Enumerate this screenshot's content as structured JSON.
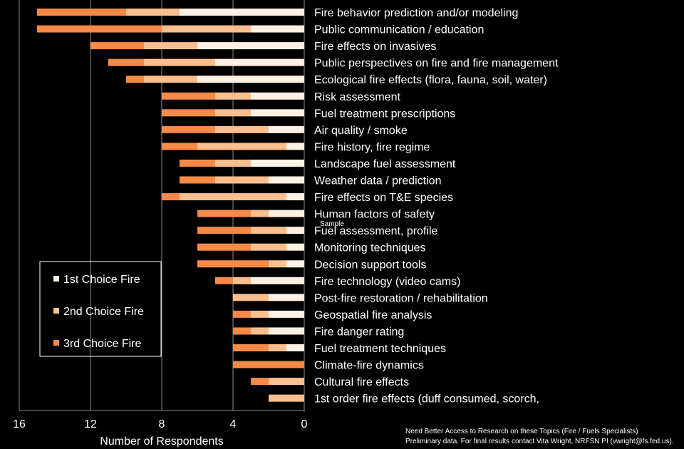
{
  "chart_data": {
    "type": "bar",
    "orientation": "horizontal",
    "stacked": true,
    "x_reversed": true,
    "categories": [
      "Fire behavior prediction and/or modeling",
      "Public communication / education",
      "Fire effects on invasives",
      "Public perspectives on fire and fire management",
      "Ecological fire effects (flora, fauna, soil, water)",
      "Risk assessment",
      "Fuel treatment prescriptions",
      "Air quality / smoke",
      "Fire history, fire regime",
      "Landscape fuel assessment",
      "Weather data / prediction",
      "Fire effects on T&E species",
      "Human factors of safety",
      "Fuel assessment, profile",
      "Monitoring techniques",
      "Decision support tools",
      "Fire technology (video cams)",
      "Post-fire restoration / rehabilitation",
      "Geospatial fire analysis",
      "Fire danger rating",
      "Fuel treatment techniques",
      "Climate-fire dynamics",
      "Cultural fire effects",
      "1st order fire effects (duff consumed, scorch,"
    ],
    "series": [
      {
        "name": "1st Choice Fire",
        "color": "#fff0e4",
        "values": [
          7,
          3,
          6,
          5,
          6,
          3,
          3,
          2,
          1,
          3,
          2,
          1,
          2,
          1,
          1,
          1,
          3,
          2,
          2,
          2,
          1,
          0,
          0,
          0
        ]
      },
      {
        "name": "2nd Choice Fire",
        "color": "#fbbf8f",
        "values": [
          3,
          5,
          3,
          4,
          3,
          2,
          2,
          3,
          5,
          2,
          3,
          6,
          1,
          2,
          2,
          1,
          1,
          2,
          1,
          1,
          1,
          0,
          2,
          2
        ]
      },
      {
        "name": "3rd Choice Fire",
        "color": "#f78a46",
        "values": [
          5,
          7,
          3,
          2,
          1,
          3,
          3,
          3,
          2,
          2,
          2,
          1,
          3,
          3,
          3,
          4,
          1,
          0,
          1,
          1,
          2,
          4,
          1,
          0
        ]
      }
    ],
    "xlim": [
      16,
      0
    ],
    "ticks": [
      16,
      12,
      8,
      4,
      0
    ],
    "xlabel": "Number of Respondents",
    "ylabel": "",
    "title": "",
    "grid": true,
    "legend_position": "lower-left",
    "watermark": "Sample"
  },
  "footnote": {
    "line1": "Need Better Access to Research on these Topics (Fire / Fuels Specialists)",
    "line2": "Preliminary data.  For final results contact Vita Wright, NRFSN PI (vwright@fs.fed.us)."
  }
}
